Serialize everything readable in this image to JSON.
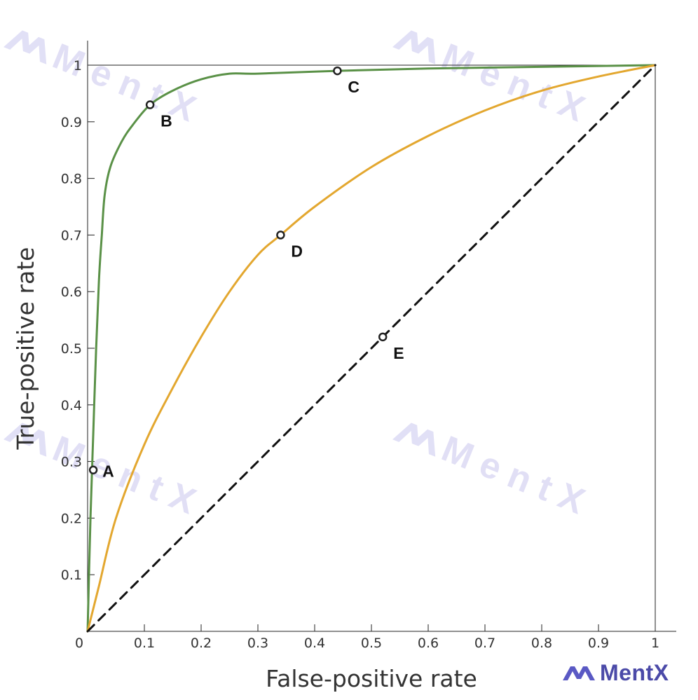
{
  "chart_data": {
    "type": "line",
    "xlabel": "False-positive rate",
    "ylabel": "True-positive rate",
    "xlim": [
      0,
      1
    ],
    "ylim": [
      0,
      1
    ],
    "x_ticks": [
      "0",
      "0.1",
      "0.2",
      "0.3",
      "0.4",
      "0.5",
      "0.6",
      "0.7",
      "0.8",
      "0.9",
      "1"
    ],
    "y_ticks": [
      "0.1",
      "0.2",
      "0.3",
      "0.4",
      "0.5",
      "0.6",
      "0.7",
      "0.8",
      "0.9",
      "1"
    ],
    "grid": false,
    "series": [
      {
        "color": "#5a9147",
        "style": "solid",
        "x": [
          0,
          0.005,
          0.01,
          0.015,
          0.02,
          0.025,
          0.03,
          0.04,
          0.06,
          0.08,
          0.11,
          0.15,
          0.2,
          0.25,
          0.3,
          0.44,
          0.6,
          0.8,
          1.0
        ],
        "y": [
          0,
          0.2,
          0.35,
          0.5,
          0.62,
          0.7,
          0.77,
          0.82,
          0.865,
          0.895,
          0.93,
          0.955,
          0.975,
          0.985,
          0.985,
          0.99,
          0.994,
          0.997,
          1.0
        ]
      },
      {
        "color": "#e3a72f",
        "style": "solid",
        "x": [
          0,
          0.02,
          0.05,
          0.1,
          0.15,
          0.2,
          0.25,
          0.3,
          0.34,
          0.4,
          0.5,
          0.6,
          0.7,
          0.8,
          0.9,
          1.0
        ],
        "y": [
          0,
          0.08,
          0.2,
          0.33,
          0.43,
          0.52,
          0.6,
          0.665,
          0.7,
          0.75,
          0.82,
          0.875,
          0.92,
          0.955,
          0.98,
          1.0
        ]
      },
      {
        "color": "#111111",
        "style": "dashed",
        "x": [
          0,
          1
        ],
        "y": [
          0,
          1
        ]
      }
    ],
    "points": [
      {
        "label": "A",
        "x": 0.01,
        "y": 0.285
      },
      {
        "label": "B",
        "x": 0.11,
        "y": 0.93
      },
      {
        "label": "C",
        "x": 0.44,
        "y": 0.99
      },
      {
        "label": "D",
        "x": 0.34,
        "y": 0.7
      },
      {
        "label": "E",
        "x": 0.52,
        "y": 0.52
      }
    ]
  },
  "watermark": {
    "text": "MentX",
    "color": "#c9c6ee"
  },
  "brand": {
    "text": "MentX",
    "color": "#4b4aa8"
  }
}
